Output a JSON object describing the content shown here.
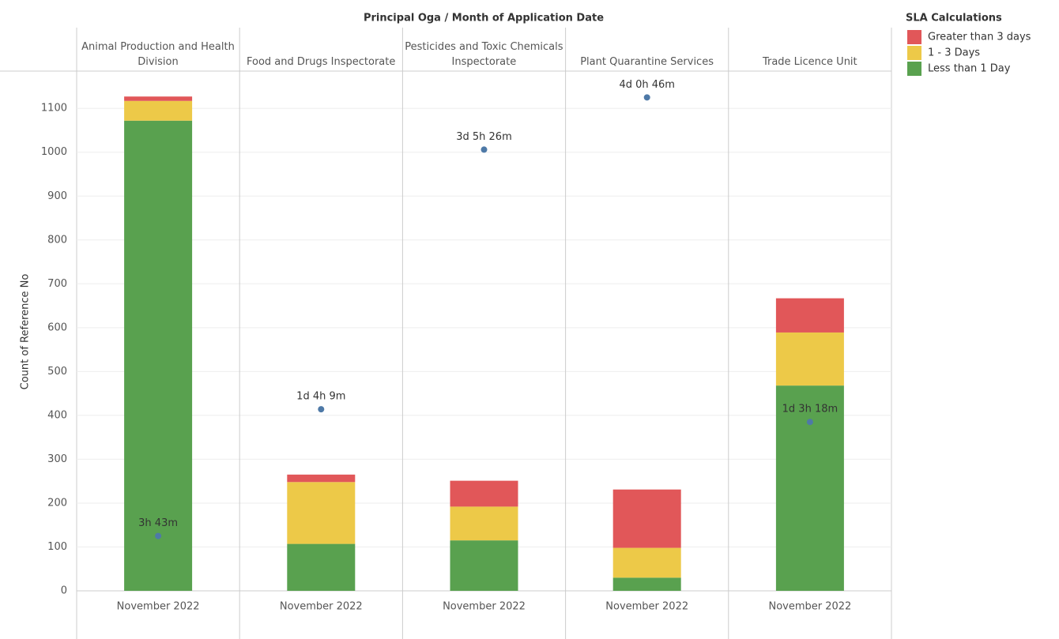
{
  "chart_data": {
    "type": "stacked_bar",
    "title": "Principal Oga / Month of Application Date",
    "ylabel": "Count of Reference No",
    "legend_title": "SLA Calculations",
    "categories": [
      "Animal Production and Health Division",
      "Food and Drugs Inspectorate",
      "Pesticides and Toxic Chemicals Inspectorate",
      "Plant Quarantine Services",
      "Trade Licence Unit"
    ],
    "x_labels": [
      "November 2022",
      "November 2022",
      "November 2022",
      "November 2022",
      "November 2022"
    ],
    "series": [
      {
        "name": "Greater than 3 days",
        "color": "#e15759",
        "values": [
          10,
          17,
          59,
          133,
          78
        ]
      },
      {
        "name": "1 - 3 Days",
        "color": "#edc948",
        "values": [
          45,
          141,
          77,
          68,
          121
        ]
      },
      {
        "name": "Less than 1 Day",
        "color": "#59a14f",
        "values": [
          1072,
          107,
          115,
          30,
          468
        ]
      }
    ],
    "dots": {
      "color": "#4e79a7",
      "values": [
        125,
        414,
        1006,
        1125,
        385
      ],
      "value_labels": [
        "3h 43m",
        "1d 4h 9m",
        "3d 5h 26m",
        "4d 0h 46m",
        "1d 3h 18m"
      ]
    },
    "ylim": [
      0,
      1185
    ],
    "yticks": [
      0,
      100,
      200,
      300,
      400,
      500,
      600,
      700,
      800,
      900,
      1000,
      1100
    ],
    "grid": true,
    "legend": "right"
  }
}
